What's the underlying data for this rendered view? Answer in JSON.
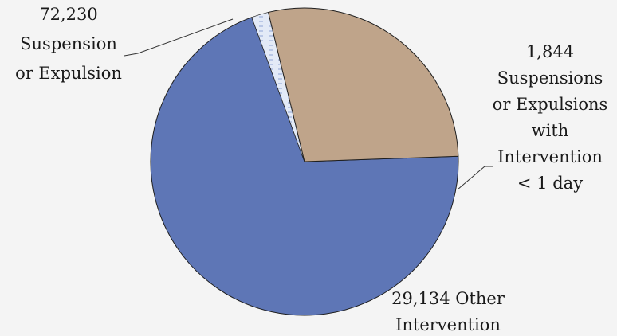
{
  "chart_data": {
    "type": "pie",
    "title": "",
    "slices": [
      {
        "value": 72230,
        "color": "#5e76b6",
        "pattern": "none",
        "label_lines": [
          "72,230",
          "Suspension",
          "or Expulsion"
        ]
      },
      {
        "value": 1844,
        "color": "#dde6f5",
        "pattern": "dots",
        "label_lines": [
          "1,844",
          "Suspensions",
          "or Expulsions",
          "with",
          "Intervention",
          "< 1 day"
        ]
      },
      {
        "value": 29134,
        "color": "#bfa48a",
        "pattern": "none",
        "label_lines": [
          "29,134 Other",
          "Intervention"
        ]
      }
    ],
    "start_angle_deg": -2,
    "direction": "clockwise",
    "legend": "none",
    "leader_lines": true
  }
}
